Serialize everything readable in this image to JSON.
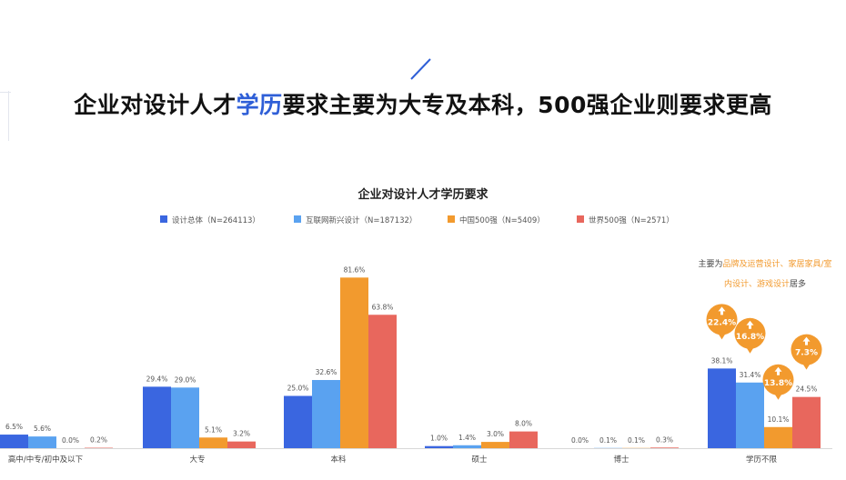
{
  "headline": {
    "part1": "企业对设计人才",
    "highlight": "学历",
    "part2": "要求主要为大专及本科，500强企业则要求更高"
  },
  "annotation": {
    "prefix": "主要为",
    "highlight1": "品牌及运营设计、家居家具/室",
    "highlight2": "内设计、游戏设计",
    "suffix": "居多"
  },
  "colors": {
    "accent": "#2f5fd7",
    "orange": "#f29a2e"
  },
  "chart_data": {
    "type": "bar",
    "title": "企业对设计人才学历要求",
    "categories": [
      "高中/中专/初中及以下",
      "大专",
      "本科",
      "硕士",
      "博士",
      "学历不限"
    ],
    "series": [
      {
        "name": "设计总体（N=264113）",
        "color": "#3a66e0",
        "values": [
          6.5,
          29.4,
          25.0,
          1.0,
          0.0,
          38.1
        ]
      },
      {
        "name": "互联网新兴设计（N=187132）",
        "color": "#5aa2f0",
        "values": [
          5.6,
          29.0,
          32.6,
          1.4,
          0.1,
          31.4
        ]
      },
      {
        "name": "中国500强（N=5409）",
        "color": "#f29a2e",
        "values": [
          0.0,
          5.1,
          81.6,
          3.0,
          0.1,
          10.1
        ]
      },
      {
        "name": "世界500强（N=2571）",
        "color": "#e8675d",
        "values": [
          0.2,
          3.2,
          63.8,
          8.0,
          0.3,
          24.5
        ]
      }
    ],
    "value_labels": [
      [
        "6.5%",
        "29.4%",
        "25.0%",
        "1.0%",
        "0.0%",
        "38.1%"
      ],
      [
        "5.6%",
        "29.0%",
        "32.6%",
        "1.4%",
        "0.1%",
        "31.4%"
      ],
      [
        "0.0%",
        "5.1%",
        "81.6%",
        "3.0%",
        "0.1%",
        "10.1%"
      ],
      [
        "0.2%",
        "3.2%",
        "63.8%",
        "8.0%",
        "0.3%",
        "24.5%"
      ]
    ],
    "callouts": [
      {
        "series": 0,
        "category": 5,
        "label": "22.4%"
      },
      {
        "series": 1,
        "category": 5,
        "label": "16.8%"
      },
      {
        "series": 2,
        "category": 5,
        "label": "13.8%"
      },
      {
        "series": 3,
        "category": 5,
        "label": "7.3%"
      }
    ],
    "ylim": [
      0,
      100
    ],
    "grid": false,
    "legend": "top"
  }
}
